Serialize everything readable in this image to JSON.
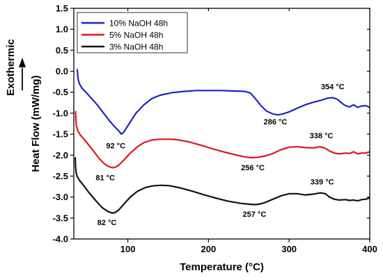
{
  "chart_data": {
    "type": "line",
    "xlabel": "Temperature (°C)",
    "ylabel": "Heat Flow (mW/mg)",
    "exo_label": "Exothermic",
    "xlim": [
      33,
      400
    ],
    "ylim": [
      -4.0,
      1.5
    ],
    "xticks": [
      100,
      200,
      300,
      400
    ],
    "xtick_labels": [
      "100",
      "200",
      "300",
      "400"
    ],
    "yticks": [
      1.5,
      1.0,
      0.5,
      0.0,
      -0.5,
      -1.0,
      -1.5,
      -2.0,
      -2.5,
      -3.0,
      -3.5,
      -4.0
    ],
    "ytick_labels": [
      "1.5",
      "1.0",
      "0.5",
      "0.0",
      "-0.5",
      "-1.0",
      "-1.5",
      "-2.0",
      "-2.5",
      "-3.0",
      "-3.5",
      "-4.0"
    ],
    "grid": false,
    "legend_position": "top-left",
    "series": [
      {
        "name": "10% NaOH 48h",
        "color": "#1f22c8",
        "x": [
          37.2,
          37.8,
          38.5,
          40,
          43,
          48,
          55,
          62,
          70,
          78,
          85,
          90,
          92,
          95,
          100,
          110,
          120,
          130,
          140,
          155,
          170,
          185,
          200,
          215,
          230,
          245,
          252,
          258,
          265,
          272,
          280,
          286,
          292,
          300,
          310,
          320,
          330,
          340,
          348,
          354,
          360,
          366,
          370,
          375,
          380,
          385,
          390,
          395,
          400
        ],
        "y": [
          0.05,
          -0.1,
          -0.2,
          -0.3,
          -0.4,
          -0.5,
          -0.65,
          -0.8,
          -1.0,
          -1.2,
          -1.35,
          -1.45,
          -1.5,
          -1.45,
          -1.3,
          -1.0,
          -0.8,
          -0.65,
          -0.57,
          -0.51,
          -0.48,
          -0.46,
          -0.46,
          -0.46,
          -0.47,
          -0.48,
          -0.52,
          -0.65,
          -0.82,
          -0.95,
          -1.02,
          -1.04,
          -1.02,
          -0.97,
          -0.88,
          -0.8,
          -0.74,
          -0.69,
          -0.64,
          -0.63,
          -0.67,
          -0.77,
          -0.82,
          -0.85,
          -0.8,
          -0.86,
          -0.83,
          -0.82,
          -0.86
        ]
      },
      {
        "name": "5% NaOH 48h",
        "color": "#e0141e",
        "x": [
          35.2,
          35.6,
          36.2,
          38,
          41,
          46,
          52,
          58,
          64,
          70,
          75,
          79,
          81,
          84,
          88,
          95,
          103,
          112,
          120,
          130,
          140,
          150,
          160,
          175,
          190,
          205,
          220,
          235,
          245,
          252,
          256,
          262,
          270,
          280,
          290,
          300,
          310,
          320,
          330,
          338,
          344,
          350,
          356,
          362,
          370,
          375,
          380,
          385,
          390,
          395,
          400
        ],
        "y": [
          -0.95,
          -1.15,
          -1.3,
          -1.42,
          -1.52,
          -1.63,
          -1.77,
          -1.92,
          -2.07,
          -2.19,
          -2.26,
          -2.29,
          -2.3,
          -2.29,
          -2.25,
          -2.12,
          -1.95,
          -1.8,
          -1.7,
          -1.64,
          -1.62,
          -1.62,
          -1.63,
          -1.68,
          -1.76,
          -1.85,
          -1.93,
          -2.0,
          -2.04,
          -2.06,
          -2.06,
          -2.05,
          -2.02,
          -1.96,
          -1.87,
          -1.81,
          -1.8,
          -1.82,
          -1.83,
          -1.8,
          -1.83,
          -1.9,
          -1.95,
          -1.97,
          -1.95,
          -1.96,
          -1.92,
          -1.97,
          -1.95,
          -1.95,
          -1.92
        ]
      },
      {
        "name": "3% NaOH 48h",
        "color": "#111111",
        "x": [
          34.8,
          35.1,
          35.8,
          37,
          40,
          45,
          52,
          60,
          68,
          75,
          79,
          82,
          85,
          89,
          95,
          103,
          112,
          122,
          132,
          142,
          152,
          165,
          180,
          195,
          210,
          225,
          240,
          250,
          257,
          263,
          270,
          280,
          290,
          300,
          310,
          320,
          330,
          339,
          345,
          350,
          356,
          362,
          370,
          375,
          380,
          385,
          390,
          395,
          400
        ],
        "y": [
          -2.05,
          -2.25,
          -2.4,
          -2.5,
          -2.6,
          -2.72,
          -2.9,
          -3.08,
          -3.25,
          -3.34,
          -3.37,
          -3.38,
          -3.36,
          -3.3,
          -3.17,
          -3.0,
          -2.86,
          -2.77,
          -2.73,
          -2.72,
          -2.73,
          -2.78,
          -2.86,
          -2.95,
          -3.03,
          -3.1,
          -3.15,
          -3.17,
          -3.18,
          -3.17,
          -3.13,
          -3.05,
          -2.97,
          -2.92,
          -2.92,
          -2.95,
          -2.93,
          -2.9,
          -2.92,
          -3.0,
          -3.05,
          -3.07,
          -3.06,
          -3.08,
          -3.07,
          -3.09,
          -3.06,
          -3.05,
          -3.02
        ]
      }
    ],
    "annotations": [
      {
        "text": "92 °C",
        "x": 85,
        "y": -1.84
      },
      {
        "text": "286 °C",
        "x": 283,
        "y": -1.27
      },
      {
        "text": "354 °C",
        "x": 354,
        "y": -0.43
      },
      {
        "text": "81 °C",
        "x": 72,
        "y": -2.6
      },
      {
        "text": "256 °C",
        "x": 255,
        "y": -2.36
      },
      {
        "text": "338 °C",
        "x": 340,
        "y": -1.6
      },
      {
        "text": "82 °C",
        "x": 74,
        "y": -3.67
      },
      {
        "text": "257 °C",
        "x": 257,
        "y": -3.47
      },
      {
        "text": "339 °C",
        "x": 341,
        "y": -2.7
      }
    ]
  }
}
